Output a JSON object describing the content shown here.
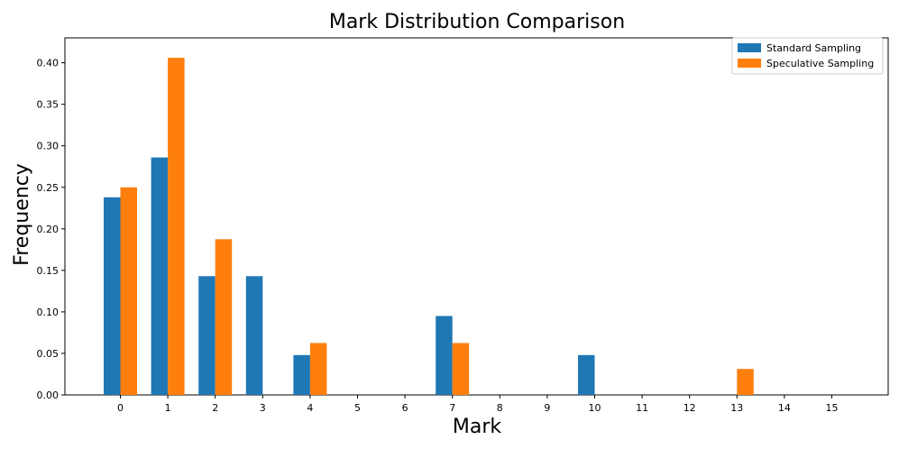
{
  "chart_data": {
    "type": "bar",
    "title": "Mark Distribution Comparison",
    "xlabel": "Mark",
    "ylabel": "Frequency",
    "categories": [
      "0",
      "1",
      "2",
      "3",
      "4",
      "5",
      "6",
      "7",
      "8",
      "9",
      "10",
      "11",
      "12",
      "13",
      "14",
      "15"
    ],
    "series": [
      {
        "name": "Standard Sampling",
        "color": "#1f77b4",
        "values": [
          0.238,
          0.286,
          0.143,
          0.143,
          0.048,
          0,
          0,
          0.095,
          0,
          0,
          0.048,
          0,
          0,
          0,
          0,
          0
        ]
      },
      {
        "name": "Speculative Sampling",
        "color": "#ff7f0e",
        "values": [
          0.25,
          0.406,
          0.1875,
          0,
          0.0625,
          0,
          0,
          0.0625,
          0,
          0,
          0,
          0,
          0,
          0.03125,
          0,
          0
        ]
      }
    ],
    "ylim": [
      0,
      0.43
    ],
    "yticks": [
      "0.00",
      "0.05",
      "0.10",
      "0.15",
      "0.20",
      "0.25",
      "0.30",
      "0.35",
      "0.40"
    ],
    "legend_position": "top-right",
    "grid": false
  }
}
